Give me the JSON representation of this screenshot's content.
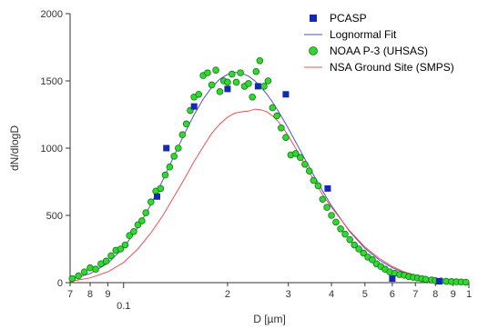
{
  "chart_data": {
    "type": "scatter",
    "xlabel": "D [µm]",
    "ylabel": "dN/dlogD",
    "x_scale": "log",
    "xlim": [
      0.07,
      1.0
    ],
    "ylim": [
      0,
      2000
    ],
    "grid": false,
    "legend_position": "top-right",
    "y_ticks": [
      0,
      500,
      1000,
      1500,
      2000
    ],
    "y_tick_labels": [
      "0",
      "500",
      "1000",
      "1500",
      "2000"
    ],
    "x_ticks": [
      0.07,
      0.08,
      0.09,
      0.1,
      0.2,
      0.3,
      0.4,
      0.5,
      0.6,
      0.7,
      0.8,
      0.9,
      1.0
    ],
    "x_tick_labels": [
      "7",
      "8",
      "9",
      "0.1",
      "2",
      "3",
      "4",
      "5",
      "6",
      "7",
      "8",
      "9",
      "1"
    ],
    "series": [
      {
        "name": "PCASP",
        "kind": "marker-square",
        "color": "#1428b4",
        "x": [
          0.125,
          0.133,
          0.16,
          0.2,
          0.245,
          0.295,
          0.39,
          0.6,
          0.82
        ],
        "y": [
          640,
          1000,
          1310,
          1440,
          1460,
          1400,
          700,
          30,
          10
        ]
      },
      {
        "name": "Lognormal Fit",
        "kind": "line",
        "color": "#4a50d6",
        "x": [
          0.07,
          0.08,
          0.09,
          0.1,
          0.11,
          0.12,
          0.13,
          0.14,
          0.15,
          0.16,
          0.17,
          0.18,
          0.19,
          0.2,
          0.21,
          0.22,
          0.23,
          0.24,
          0.25,
          0.26,
          0.27,
          0.28,
          0.29,
          0.3,
          0.32,
          0.34,
          0.36,
          0.38,
          0.4,
          0.45,
          0.5,
          0.55,
          0.6,
          0.65,
          0.7,
          0.8,
          0.9,
          1.0
        ],
        "y": [
          25,
          67,
          144,
          260,
          409,
          582,
          764,
          943,
          1106,
          1248,
          1364,
          1452,
          1513,
          1548,
          1563,
          1557,
          1535,
          1500,
          1454,
          1401,
          1342,
          1278,
          1213,
          1146,
          1014,
          888,
          772,
          666,
          572,
          384,
          255,
          168,
          111,
          73,
          48,
          21,
          9,
          4
        ]
      },
      {
        "name": "NOAA P-3 (UHSAS)",
        "kind": "marker-circle",
        "color": "#33d633",
        "x": [
          0.071,
          0.074,
          0.077,
          0.08,
          0.083,
          0.086,
          0.089,
          0.092,
          0.095,
          0.098,
          0.101,
          0.104,
          0.107,
          0.11,
          0.113,
          0.116,
          0.12,
          0.124,
          0.128,
          0.132,
          0.136,
          0.14,
          0.144,
          0.148,
          0.152,
          0.156,
          0.16,
          0.165,
          0.17,
          0.175,
          0.18,
          0.185,
          0.19,
          0.195,
          0.2,
          0.206,
          0.212,
          0.218,
          0.224,
          0.23,
          0.236,
          0.242,
          0.248,
          0.255,
          0.262,
          0.27,
          0.278,
          0.286,
          0.295,
          0.305,
          0.315,
          0.325,
          0.335,
          0.345,
          0.355,
          0.366,
          0.377,
          0.388,
          0.4,
          0.412,
          0.425,
          0.438,
          0.452,
          0.466,
          0.48,
          0.495,
          0.51,
          0.525,
          0.54,
          0.556,
          0.572,
          0.59,
          0.61,
          0.63,
          0.65,
          0.67,
          0.69,
          0.71,
          0.73,
          0.75,
          0.78,
          0.8,
          0.83,
          0.86,
          0.89,
          0.92,
          0.95,
          0.98
        ],
        "y": [
          30,
          50,
          80,
          110,
          100,
          140,
          160,
          200,
          240,
          250,
          280,
          350,
          380,
          430,
          460,
          520,
          600,
          680,
          700,
          800,
          860,
          940,
          1000,
          1100,
          1180,
          1280,
          1380,
          1400,
          1540,
          1560,
          1470,
          1580,
          1420,
          1500,
          1490,
          1550,
          1490,
          1560,
          1460,
          1480,
          1380,
          1570,
          1650,
          1460,
          1500,
          1300,
          1240,
          1150,
          1080,
          950,
          960,
          930,
          880,
          830,
          760,
          720,
          620,
          560,
          500,
          450,
          400,
          360,
          320,
          280,
          250,
          220,
          190,
          170,
          140,
          120,
          100,
          80,
          70,
          60,
          55,
          45,
          40,
          35,
          30,
          25,
          20,
          15,
          12,
          10,
          8,
          6,
          5,
          3
        ]
      },
      {
        "name": "NSA Ground Site (SMPS)",
        "kind": "line",
        "color": "#f05050",
        "x": [
          0.07,
          0.08,
          0.09,
          0.1,
          0.11,
          0.12,
          0.13,
          0.14,
          0.15,
          0.16,
          0.17,
          0.18,
          0.19,
          0.2,
          0.21,
          0.22,
          0.23,
          0.24,
          0.25,
          0.26,
          0.27,
          0.28,
          0.29,
          0.3,
          0.32,
          0.34,
          0.36,
          0.38,
          0.4,
          0.45,
          0.5,
          0.55,
          0.6,
          0.65,
          0.7,
          0.8,
          0.9,
          1.0
        ],
        "y": [
          10,
          35,
          80,
          150,
          250,
          370,
          500,
          640,
          770,
          900,
          1010,
          1110,
          1180,
          1230,
          1260,
          1270,
          1275,
          1290,
          1285,
          1270,
          1240,
          1200,
          1150,
          1090,
          970,
          850,
          740,
          640,
          560,
          390,
          265,
          180,
          120,
          80,
          55,
          25,
          12,
          6
        ]
      }
    ]
  }
}
